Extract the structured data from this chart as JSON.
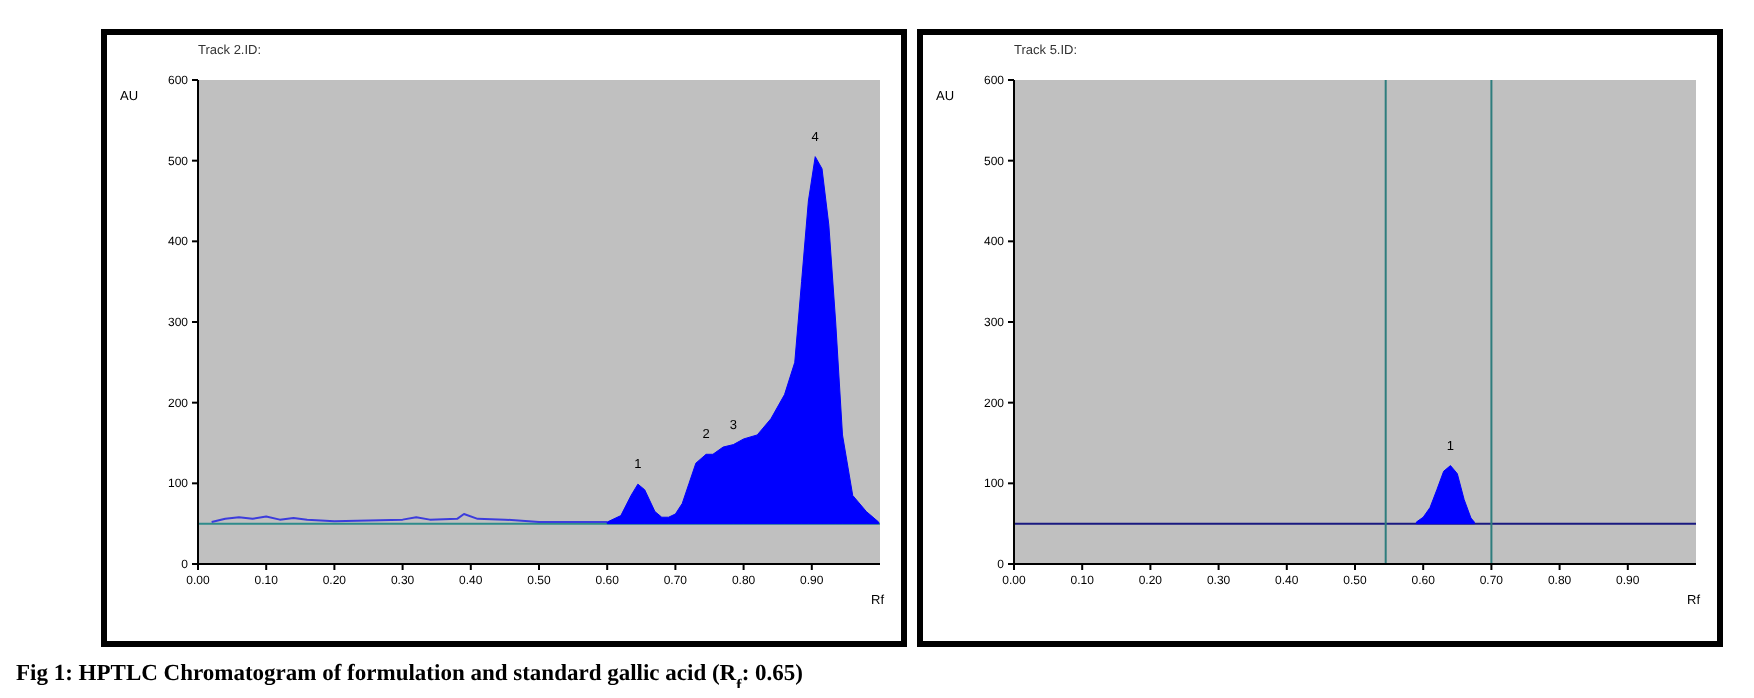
{
  "chart_data": [
    {
      "type": "line",
      "xlabel": "Rf",
      "ylabel": "AU",
      "xlim": [
        0,
        1.0
      ],
      "ylim": [
        0,
        600
      ],
      "xticks": [
        {
          "value": 0,
          "label": "0.00"
        },
        {
          "value": 0.1,
          "label": "0.10"
        },
        {
          "value": 0.2,
          "label": "0.20"
        },
        {
          "value": 0.3,
          "label": "0.30"
        },
        {
          "value": 0.4,
          "label": "0.40"
        },
        {
          "value": 0.5,
          "label": "0.50"
        },
        {
          "value": 0.6,
          "label": "0.60"
        },
        {
          "value": 0.7,
          "label": "0.70"
        },
        {
          "value": 0.8,
          "label": "0.80"
        },
        {
          "value": 0.9,
          "label": "0.90"
        }
      ],
      "yticks": [
        0,
        100,
        200,
        300,
        400,
        500,
        600
      ],
      "series": [
        {
          "color": "#3c3cdc",
          "x": [
            0.02,
            0.04,
            0.06,
            0.08,
            0.1,
            0.12,
            0.14,
            0.16,
            0.2,
            0.25,
            0.3,
            0.32,
            0.34,
            0.38,
            0.39,
            0.41,
            0.45,
            0.5,
            0.55,
            0.6
          ],
          "values": [
            52,
            56,
            58,
            56,
            59,
            55,
            57,
            55,
            53,
            54,
            55,
            58,
            55,
            56,
            62,
            56,
            55,
            52,
            52,
            52
          ]
        },
        {
          "type": "area",
          "color": "#0000ff",
          "x": [
            0.6,
            0.62,
            0.635,
            0.645,
            0.655,
            0.67,
            0.68,
            0.69,
            0.7,
            0.71,
            0.72,
            0.73,
            0.745,
            0.755,
            0.77,
            0.785,
            0.8,
            0.82,
            0.84,
            0.86,
            0.875,
            0.885,
            0.895,
            0.905,
            0.915,
            0.925,
            0.935,
            0.945,
            0.96,
            0.98,
            0.998
          ],
          "values": [
            52,
            60,
            85,
            99,
            92,
            65,
            58,
            58,
            62,
            75,
            100,
            125,
            136,
            136,
            145,
            148,
            155,
            160,
            180,
            210,
            250,
            350,
            450,
            505,
            490,
            420,
            300,
            160,
            85,
            65,
            52
          ]
        }
      ],
      "ref_lines": [
        {
          "axis": "y",
          "value": 50,
          "color": "#2e8b8b"
        }
      ],
      "annotations": [
        "Track 2.ID:",
        "Fig 1: HPTLC Chromatogram of formulation and standard gallic acid (R$_{f}$: 0.65)",
        {
          "text": "1",
          "x": 0.645,
          "y": 99
        },
        {
          "text": "2",
          "x": 0.745,
          "y": 136
        },
        {
          "text": "3",
          "x": 0.785,
          "y": 148
        },
        {
          "text": "4",
          "x": 0.905,
          "y": 505
        }
      ],
      "grid": false
    },
    {
      "type": "area",
      "xlabel": "Rf",
      "ylabel": "AU",
      "xlim": [
        0,
        1.0
      ],
      "ylim": [
        0,
        600
      ],
      "xticks": [
        {
          "value": 0,
          "label": "0.00"
        },
        {
          "value": 0.1,
          "label": "0.10"
        },
        {
          "value": 0.2,
          "label": "0.20"
        },
        {
          "value": 0.3,
          "label": "0.30"
        },
        {
          "value": 0.4,
          "label": "0.40"
        },
        {
          "value": 0.5,
          "label": "0.50"
        },
        {
          "value": 0.6,
          "label": "0.60"
        },
        {
          "value": 0.7,
          "label": "0.70"
        },
        {
          "value": 0.8,
          "label": "0.80"
        },
        {
          "value": 0.9,
          "label": "0.90"
        }
      ],
      "yticks": [
        0,
        100,
        200,
        300,
        400,
        500,
        600
      ],
      "series": [
        {
          "color": "#0000ff",
          "x": [
            0.59,
            0.6,
            0.61,
            0.62,
            0.63,
            0.64,
            0.65,
            0.66,
            0.67,
            0.675
          ],
          "values": [
            52,
            58,
            70,
            92,
            115,
            122,
            112,
            80,
            57,
            52
          ]
        }
      ],
      "ref_lines": [
        {
          "axis": "y",
          "value": 50,
          "color": "#1a1a80"
        },
        {
          "axis": "x",
          "value": 0.545,
          "color": "#2e7d7d"
        },
        {
          "axis": "x",
          "value": 0.7,
          "color": "#2e7d7d"
        }
      ],
      "annotations": [
        "Track 5.ID:",
        {
          "text": "1",
          "x": 0.64,
          "y": 122
        }
      ],
      "grid": false
    }
  ]
}
